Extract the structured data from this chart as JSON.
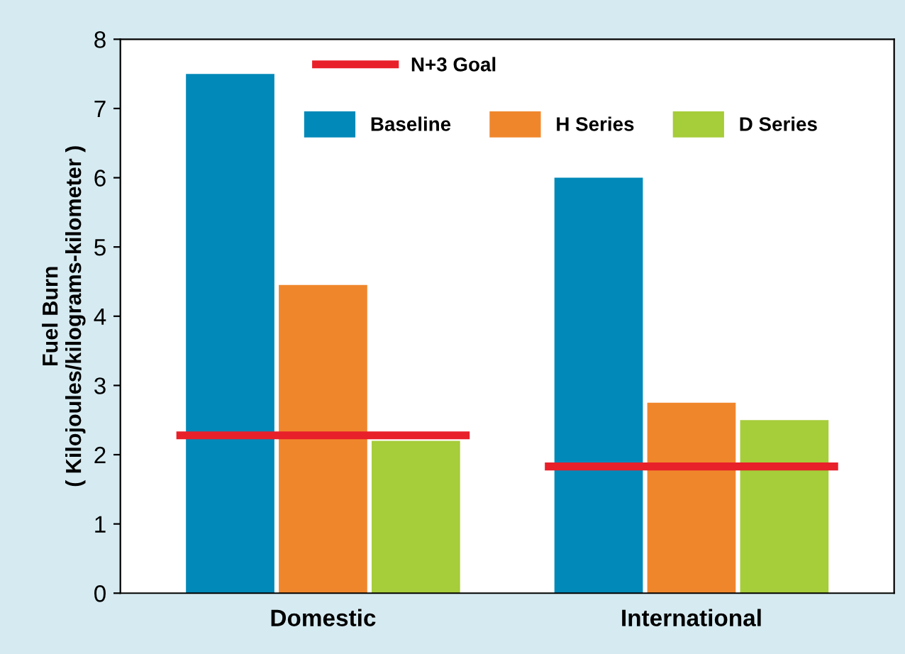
{
  "chart_data": {
    "type": "bar",
    "ylabel": "Fuel Burn\n( Kilojoules/kilograms-kilometer )",
    "categories": [
      "Domestic",
      "International"
    ],
    "series": [
      {
        "name": "Baseline",
        "color": "#0089b9",
        "values": [
          7.5,
          6.0
        ]
      },
      {
        "name": "H Series",
        "color": "#f0862c",
        "values": [
          4.45,
          2.75
        ]
      },
      {
        "name": "D Series",
        "color": "#a6cd3a",
        "values": [
          2.2,
          2.5
        ]
      }
    ],
    "ref_lines": [
      {
        "axis": "y",
        "value": 2.28,
        "label": "N+3 Goal",
        "color": "#e8202a"
      },
      {
        "axis": "y",
        "value": 1.83,
        "color": "#e8202a"
      }
    ],
    "ylim": [
      0,
      8
    ],
    "yticks": [
      0,
      1,
      2,
      3,
      4,
      5,
      6,
      7,
      8
    ],
    "grid": false,
    "legend": "top"
  }
}
